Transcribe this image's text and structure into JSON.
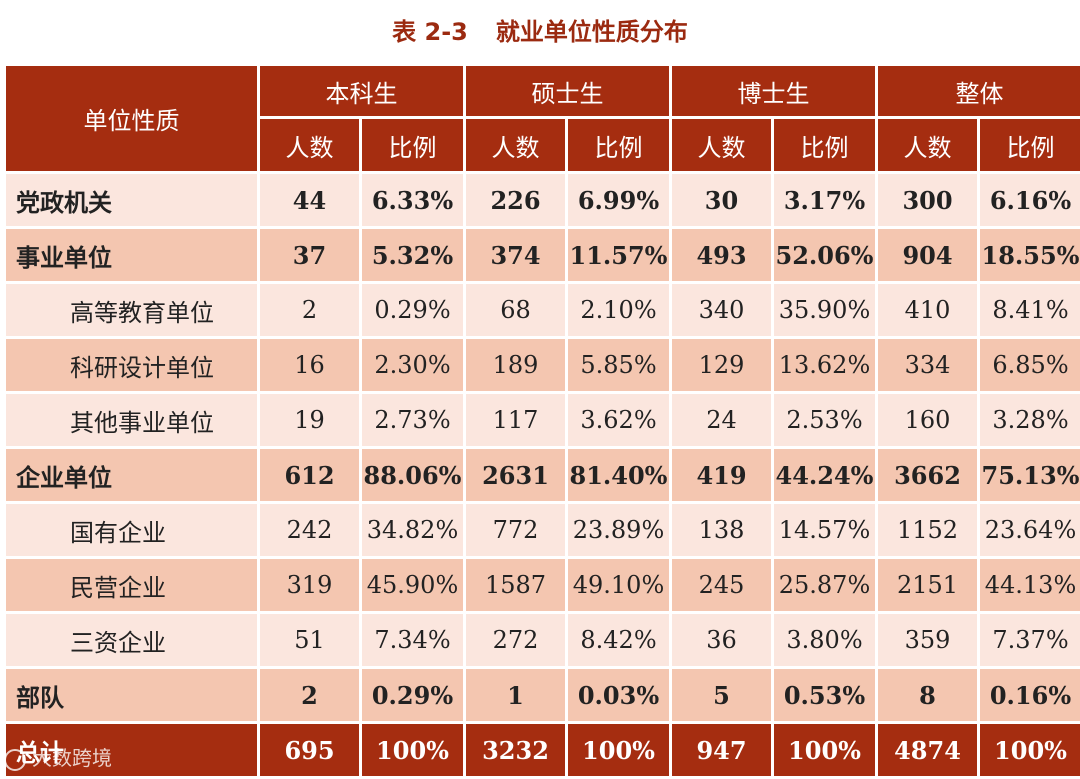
{
  "title": {
    "number": "表 2-3",
    "text": "就业单位性质分布"
  },
  "header": {
    "row_label": "单位性质",
    "groups": [
      "本科生",
      "硕士生",
      "博士生",
      "整体"
    ],
    "sub": {
      "count": "人数",
      "ratio": "比例"
    }
  },
  "rows": [
    {
      "label": "党政机关",
      "values": [
        "44",
        "6.33%",
        "226",
        "6.99%",
        "30",
        "3.17%",
        "300",
        "6.16%"
      ]
    },
    {
      "label": "事业单位",
      "values": [
        "37",
        "5.32%",
        "374",
        "11.57%",
        "493",
        "52.06%",
        "904",
        "18.55%"
      ]
    },
    {
      "label": "高等教育单位",
      "values": [
        "2",
        "0.29%",
        "68",
        "2.10%",
        "340",
        "35.90%",
        "410",
        "8.41%"
      ]
    },
    {
      "label": "科研设计单位",
      "values": [
        "16",
        "2.30%",
        "189",
        "5.85%",
        "129",
        "13.62%",
        "334",
        "6.85%"
      ]
    },
    {
      "label": "其他事业单位",
      "values": [
        "19",
        "2.73%",
        "117",
        "3.62%",
        "24",
        "2.53%",
        "160",
        "3.28%"
      ]
    },
    {
      "label": "企业单位",
      "values": [
        "612",
        "88.06%",
        "2631",
        "81.40%",
        "419",
        "44.24%",
        "3662",
        "75.13%"
      ]
    },
    {
      "label": "国有企业",
      "values": [
        "242",
        "34.82%",
        "772",
        "23.89%",
        "138",
        "14.57%",
        "1152",
        "23.64%"
      ]
    },
    {
      "label": "民营企业",
      "values": [
        "319",
        "45.90%",
        "1587",
        "49.10%",
        "245",
        "25.87%",
        "2151",
        "44.13%"
      ]
    },
    {
      "label": "三资企业",
      "values": [
        "51",
        "7.34%",
        "272",
        "8.42%",
        "36",
        "3.80%",
        "359",
        "7.37%"
      ]
    },
    {
      "label": "部队",
      "values": [
        "2",
        "0.29%",
        "1",
        "0.03%",
        "5",
        "0.53%",
        "8",
        "0.16%"
      ]
    },
    {
      "label": "总计",
      "values": [
        "695",
        "100%",
        "3232",
        "100%",
        "947",
        "100%",
        "4874",
        "100%"
      ]
    }
  ],
  "watermark": "大数跨境"
}
